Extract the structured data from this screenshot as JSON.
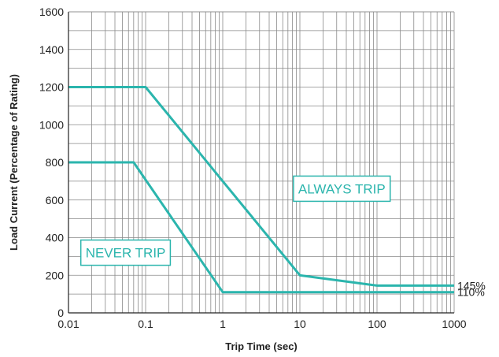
{
  "chart_data": {
    "type": "line",
    "title": "",
    "xlabel": "Trip Time (sec)",
    "ylabel": "Load Current (Percentage of Rating)",
    "x_scale": "log",
    "xlim": [
      0.01,
      1000
    ],
    "ylim": [
      0,
      1600
    ],
    "x_ticks": [
      0.01,
      0.1,
      1,
      10,
      100,
      1000
    ],
    "x_tick_labels": [
      "0.01",
      "0.1",
      "1",
      "10",
      "100",
      "1000"
    ],
    "y_ticks": [
      0,
      200,
      400,
      600,
      800,
      1000,
      1200,
      1400,
      1600
    ],
    "y_tick_labels": [
      "0",
      "200",
      "400",
      "600",
      "800",
      "1000",
      "1200",
      "1400",
      "1600"
    ],
    "grid": true,
    "line_color": "#2bb5ad",
    "series": [
      {
        "end_label": "145%",
        "points": [
          [
            0.01,
            1200
          ],
          [
            0.1,
            1200
          ],
          [
            1,
            700
          ],
          [
            10,
            200
          ],
          [
            100,
            145
          ],
          [
            1000,
            145
          ]
        ]
      },
      {
        "end_label": "110%",
        "points": [
          [
            0.01,
            800
          ],
          [
            0.07,
            800
          ],
          [
            1,
            110
          ],
          [
            10,
            110
          ],
          [
            100,
            110
          ],
          [
            1000,
            110
          ]
        ]
      }
    ],
    "annotations": [
      {
        "text": "ALWAYS TRIP",
        "x": 35,
        "y": 660
      },
      {
        "text": "NEVER TRIP",
        "x": 0.055,
        "y": 320
      }
    ]
  }
}
